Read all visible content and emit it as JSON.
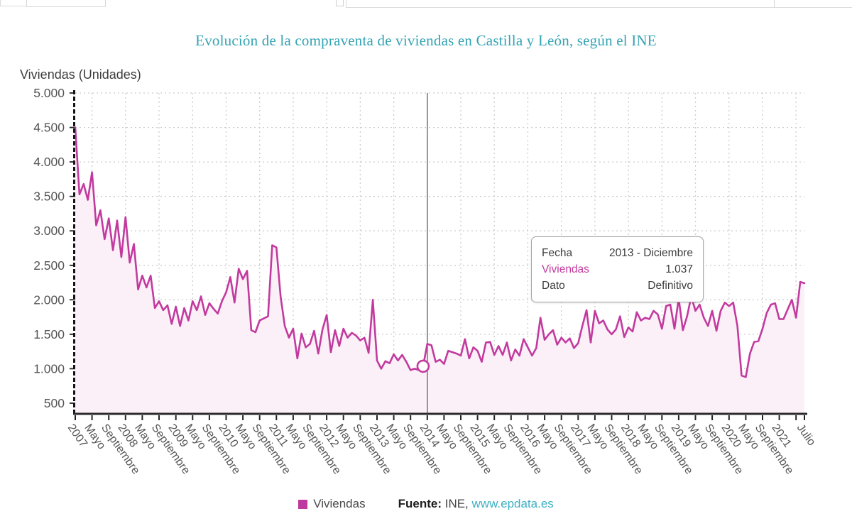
{
  "header": {
    "title": "Evolución de la compraventa de viviendas en Castilla y León, según el INE"
  },
  "axis": {
    "y_title": "Viviendas (Unidades)",
    "y_ticks": [
      "500",
      "1.000",
      "1.500",
      "2.000",
      "2.500",
      "3.000",
      "3.500",
      "4.000",
      "4.500",
      "5.000"
    ],
    "x_tick_months": [
      0,
      4,
      8,
      12,
      16,
      20,
      24,
      28,
      32,
      36,
      40,
      44,
      48,
      52,
      56,
      60,
      64,
      68,
      72,
      76,
      80,
      84,
      88,
      92,
      96,
      100,
      104,
      108,
      112,
      116,
      120,
      124,
      128,
      132,
      136,
      140,
      144,
      148,
      152,
      156,
      160,
      164,
      168,
      174
    ],
    "x_tick_labels": [
      "2007",
      "Mayo",
      "Septiembre",
      "2008",
      "Mayo",
      "Septiembre",
      "2009",
      "Mayo",
      "Septiembre",
      "2010",
      "Mayo",
      "Septiembre",
      "2011",
      "Mayo",
      "Septiembre",
      "2012",
      "Mayo",
      "Septiembre",
      "2013",
      "Mayo",
      "Septiembre",
      "2014",
      "Mayo",
      "Septiembre",
      "2015",
      "Mayo",
      "Septiembre",
      "2016",
      "Mayo",
      "Septiembre",
      "2017",
      "Mayo",
      "Septiembre",
      "2018",
      "Mayo",
      "Septiembre",
      "2019",
      "Mayo",
      "Septiembre",
      "2020",
      "Mayo",
      "Septiembre",
      "2021",
      "Julio"
    ],
    "extra_tick_months": [
      172
    ]
  },
  "tooltip": {
    "fecha_label": "Fecha",
    "fecha_value": "2013 - Diciembre",
    "viviendas_label": "Viviendas",
    "viviendas_value": "1.037",
    "dato_label": "Dato",
    "dato_value": "Definitivo"
  },
  "legend": {
    "series_label": "Viviendas"
  },
  "footer": {
    "source_label": "Fuente:",
    "source_value": "INE,",
    "link": "www.epdata.es"
  },
  "colors": {
    "title": "#33a3b3",
    "line": "#c23a9e",
    "fill": "#fbeff8",
    "grid": "#cccccc",
    "axis": "#222222",
    "crosshair": "#7d7d7d",
    "tick_text": "#555555",
    "link": "#3fb0c3",
    "swatch": "#bf3a9e"
  },
  "chart_data": {
    "type": "line",
    "title": "Evolución de la compraventa de viviendas en Castilla y León, según el INE",
    "ylabel": "Viviendas (Unidades)",
    "ylim": [
      500,
      5000
    ],
    "frequency": "monthly",
    "x_start": "2007-Enero",
    "x_end": "2021-Julio",
    "grid": true,
    "legend_position": "bottom",
    "series": [
      {
        "name": "Viviendas",
        "values": [
          4500,
          3530,
          3680,
          3450,
          3850,
          3080,
          3300,
          2880,
          3180,
          2720,
          3150,
          2620,
          3200,
          2540,
          2810,
          2150,
          2350,
          2180,
          2350,
          1880,
          1980,
          1850,
          1920,
          1650,
          1900,
          1620,
          1880,
          1700,
          1980,
          1850,
          2050,
          1780,
          1950,
          1870,
          1800,
          1980,
          2110,
          2330,
          1960,
          2450,
          2300,
          2420,
          1560,
          1530,
          1700,
          1730,
          1760,
          2790,
          2760,
          2050,
          1620,
          1450,
          1580,
          1150,
          1510,
          1310,
          1360,
          1550,
          1220,
          1570,
          1780,
          1240,
          1560,
          1330,
          1580,
          1450,
          1520,
          1480,
          1410,
          1450,
          1230,
          2000,
          1120,
          1000,
          1110,
          1080,
          1210,
          1120,
          1200,
          1100,
          980,
          1000,
          980,
          1037,
          1360,
          1340,
          1100,
          1130,
          1070,
          1260,
          1240,
          1220,
          1190,
          1430,
          1150,
          1310,
          1260,
          1100,
          1380,
          1390,
          1200,
          1330,
          1200,
          1380,
          1120,
          1280,
          1190,
          1430,
          1310,
          1190,
          1300,
          1740,
          1420,
          1500,
          1560,
          1350,
          1450,
          1380,
          1440,
          1300,
          1370,
          1620,
          1850,
          1380,
          1840,
          1660,
          1700,
          1570,
          1500,
          1570,
          1760,
          1460,
          1600,
          1540,
          1820,
          1700,
          1740,
          1720,
          1840,
          1790,
          1580,
          1910,
          1930,
          1580,
          2020,
          1560,
          1760,
          2050,
          1840,
          1930,
          1740,
          1620,
          1840,
          1550,
          1840,
          1960,
          1910,
          1960,
          1620,
          900,
          880,
          1220,
          1390,
          1400,
          1580,
          1810,
          1930,
          1950,
          1720,
          1720,
          1860,
          2000,
          1740,
          2260,
          2240
        ]
      }
    ],
    "highlight": {
      "month_index": 83,
      "fecha": "2013 - Diciembre",
      "viviendas": 1037,
      "dato": "Definitivo"
    }
  }
}
